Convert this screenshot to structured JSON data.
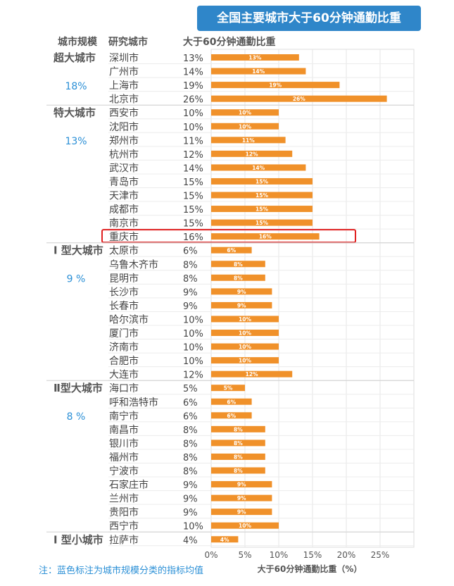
{
  "chart_data": {
    "type": "bar",
    "title": "全国主要城市大于60分钟通勤比重",
    "headers": {
      "scale": "城市规模",
      "city": "研究城市",
      "value": "大于60分钟通勤比重"
    },
    "xlabel": "大于60分钟通勤比重（%）",
    "xlim": [
      0,
      28
    ],
    "xticks": [
      "0%",
      "5%",
      "10%",
      "15%",
      "20%",
      "25%"
    ],
    "bar_color": "#f0912a",
    "group_avg_color": "#2a8fd6",
    "highlight_color": "#e02020",
    "highlight_city": "重庆市",
    "groups": [
      {
        "name": "超大城市",
        "avg": "18%",
        "cities": [
          [
            "深圳市",
            13
          ],
          [
            "广州市",
            14
          ],
          [
            "上海市",
            19
          ],
          [
            "北京市",
            26
          ]
        ]
      },
      {
        "name": "特大城市",
        "avg": "13%",
        "cities": [
          [
            "西安市",
            10
          ],
          [
            "沈阳市",
            10
          ],
          [
            "郑州市",
            11
          ],
          [
            "杭州市",
            12
          ],
          [
            "武汉市",
            14
          ],
          [
            "青岛市",
            15
          ],
          [
            "天津市",
            15
          ],
          [
            "成都市",
            15
          ],
          [
            "南京市",
            15
          ],
          [
            "重庆市",
            16
          ]
        ]
      },
      {
        "name": "Ⅰ 型大城市",
        "avg": "9 %",
        "cities": [
          [
            "太原市",
            6
          ],
          [
            "乌鲁木齐市",
            8
          ],
          [
            "昆明市",
            8
          ],
          [
            "长沙市",
            9
          ],
          [
            "长春市",
            9
          ],
          [
            "哈尔滨市",
            10
          ],
          [
            "厦门市",
            10
          ],
          [
            "济南市",
            10
          ],
          [
            "合肥市",
            10
          ],
          [
            "大连市",
            12
          ]
        ]
      },
      {
        "name": "Ⅱ型大城市",
        "avg": "8 %",
        "cities": [
          [
            "海口市",
            5
          ],
          [
            "呼和浩特市",
            6
          ],
          [
            "南宁市",
            6
          ],
          [
            "南昌市",
            8
          ],
          [
            "银川市",
            8
          ],
          [
            "福州市",
            8
          ],
          [
            "宁波市",
            8
          ],
          [
            "石家庄市",
            9
          ],
          [
            "兰州市",
            9
          ],
          [
            "贵阳市",
            9
          ],
          [
            "西宁市",
            10
          ]
        ]
      },
      {
        "name": "Ⅰ 型小城市",
        "avg": "",
        "cities": [
          [
            "拉萨市",
            4
          ]
        ]
      }
    ]
  },
  "note": "注：蓝色标注为城市规模分类的指标均值"
}
